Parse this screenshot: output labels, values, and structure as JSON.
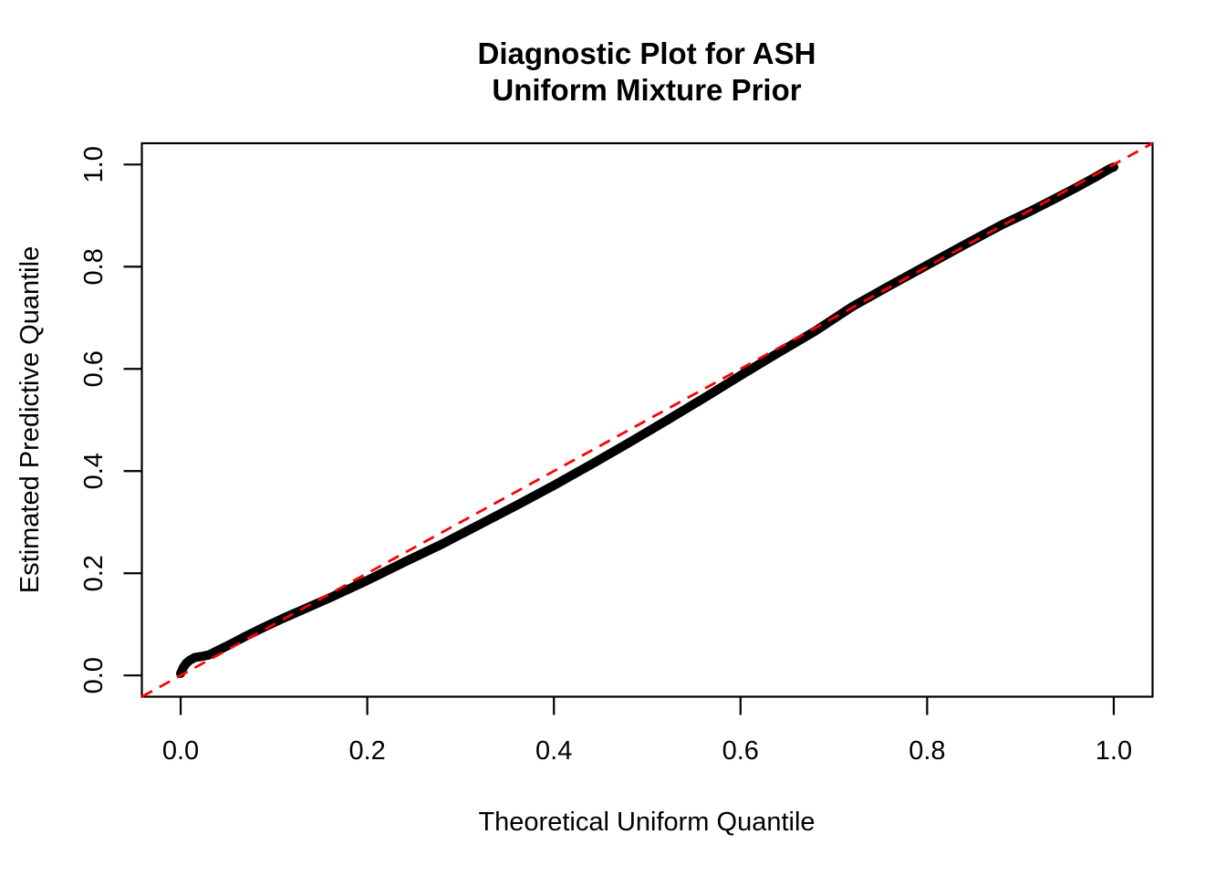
{
  "chart": {
    "title_line1": "Diagnostic Plot for ASH",
    "title_line2": "Uniform Mixture Prior",
    "xlabel": "Theoretical Uniform Quantile",
    "ylabel": "Estimated Predictive Quantile"
  },
  "chart_data": {
    "type": "line",
    "title": "Diagnostic Plot for ASH — Uniform Mixture Prior",
    "xlabel": "Theoretical Uniform Quantile",
    "ylabel": "Estimated Predictive Quantile",
    "xlim": [
      -0.0416,
      1.0416
    ],
    "ylim": [
      -0.0416,
      1.0416
    ],
    "grid": false,
    "legend": "none",
    "x_ticks": [
      0.0,
      0.2,
      0.4,
      0.6,
      0.8,
      1.0
    ],
    "x_tick_labels": [
      "0.0",
      "0.2",
      "0.4",
      "0.6",
      "0.8",
      "1.0"
    ],
    "y_ticks": [
      0.0,
      0.2,
      0.4,
      0.6,
      0.8,
      1.0
    ],
    "y_tick_labels": [
      "0.0",
      "0.2",
      "0.4",
      "0.6",
      "0.8",
      "1.0"
    ],
    "frame_color": "#000000",
    "series": [
      {
        "name": "estimated-predictive-quantile-curve",
        "color": "#000000",
        "style": "solid-thick",
        "points": [
          [
            0.0,
            0.004
          ],
          [
            0.003,
            0.016
          ],
          [
            0.006,
            0.024
          ],
          [
            0.01,
            0.03
          ],
          [
            0.015,
            0.035
          ],
          [
            0.022,
            0.037
          ],
          [
            0.03,
            0.04
          ],
          [
            0.04,
            0.049
          ],
          [
            0.05,
            0.058
          ],
          [
            0.07,
            0.077
          ],
          [
            0.09,
            0.095
          ],
          [
            0.11,
            0.112
          ],
          [
            0.13,
            0.128
          ],
          [
            0.16,
            0.152
          ],
          [
            0.2,
            0.186
          ],
          [
            0.24,
            0.222
          ],
          [
            0.28,
            0.257
          ],
          [
            0.32,
            0.295
          ],
          [
            0.36,
            0.333
          ],
          [
            0.4,
            0.372
          ],
          [
            0.44,
            0.413
          ],
          [
            0.48,
            0.455
          ],
          [
            0.52,
            0.498
          ],
          [
            0.56,
            0.542
          ],
          [
            0.6,
            0.587
          ],
          [
            0.64,
            0.631
          ],
          [
            0.68,
            0.674
          ],
          [
            0.72,
            0.722
          ],
          [
            0.76,
            0.763
          ],
          [
            0.8,
            0.803
          ],
          [
            0.84,
            0.843
          ],
          [
            0.88,
            0.882
          ],
          [
            0.91,
            0.908
          ],
          [
            0.94,
            0.936
          ],
          [
            0.96,
            0.955
          ],
          [
            0.98,
            0.975
          ],
          [
            0.995,
            0.991
          ],
          [
            1.0,
            0.995
          ]
        ]
      }
    ],
    "reference_line": {
      "name": "identity-line-y-equals-x",
      "from": [
        -0.0416,
        -0.0416
      ],
      "to": [
        1.0416,
        1.0416
      ],
      "color": "#FF0000",
      "style": "dashed"
    }
  }
}
